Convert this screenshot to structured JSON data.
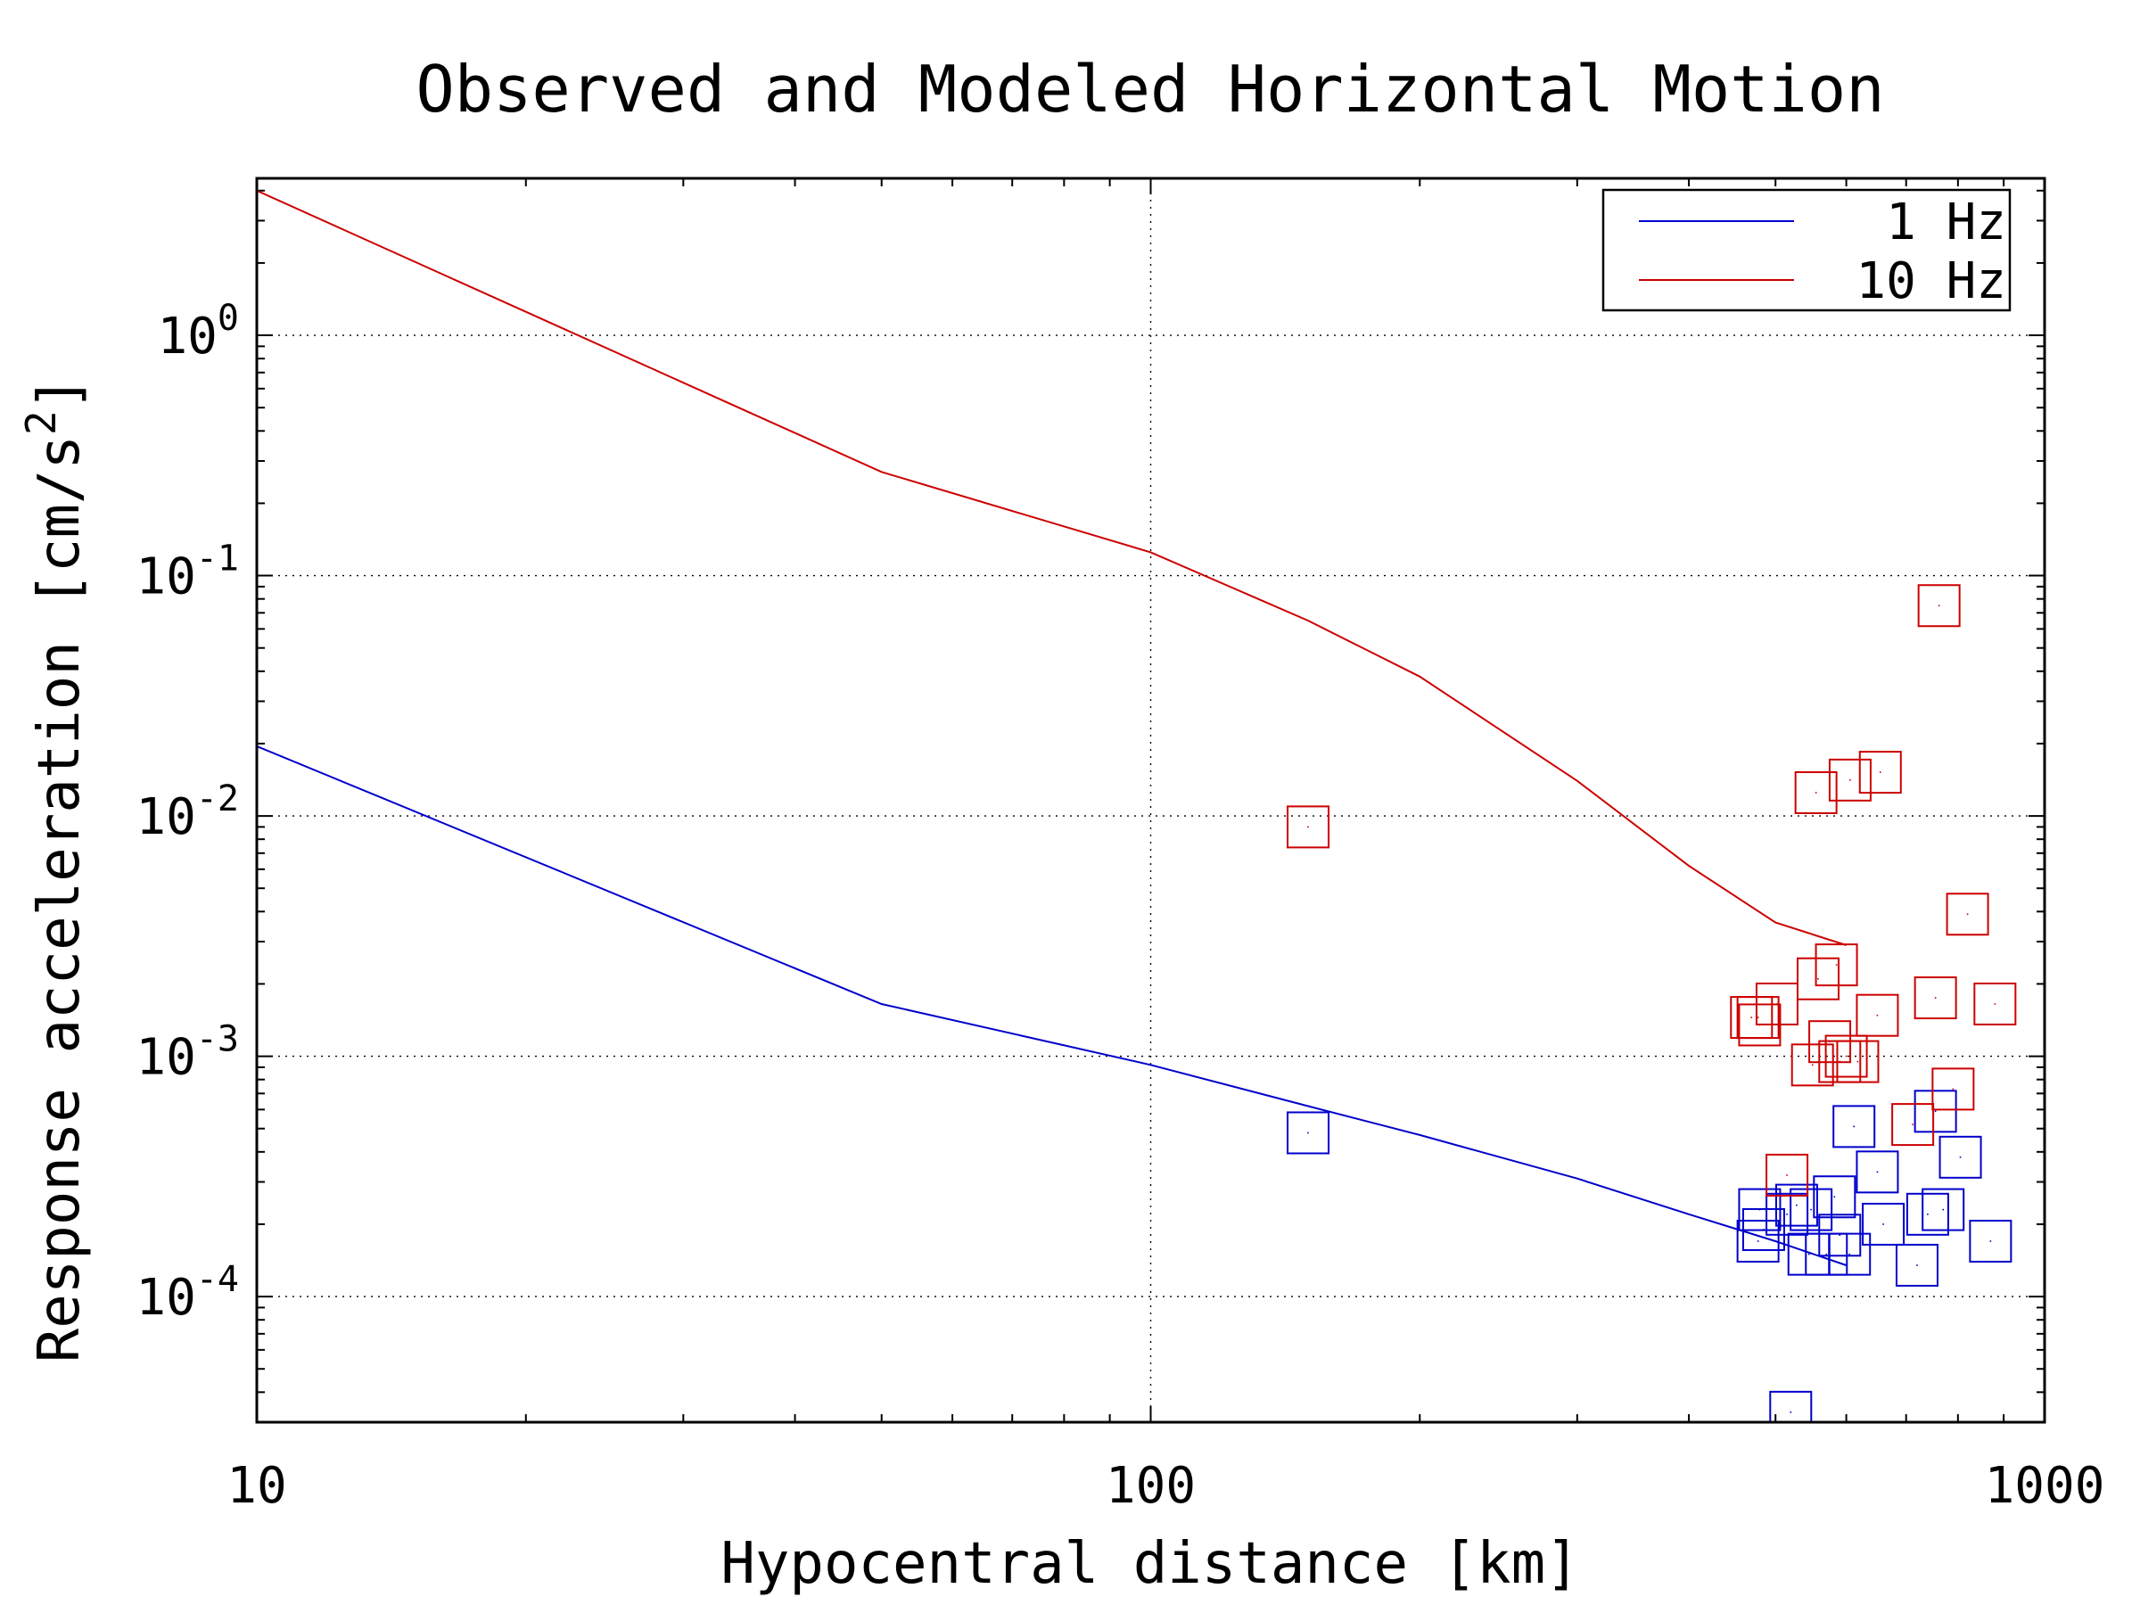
{
  "chart_data": {
    "type": "scatter",
    "title": "Observed and Modeled Horizontal Motion",
    "xlabel": "Hypocentral distance [km]",
    "ylabel": "Response acceleration [cm/s",
    "ylabel_superscript": "2",
    "ylabel_suffix": "]",
    "xscale": "log",
    "yscale": "log",
    "xlim": [
      10,
      1000
    ],
    "ylim": [
      3e-05,
      4.5
    ],
    "x_ticks": [
      {
        "value": 10,
        "label": "10"
      },
      {
        "value": 100,
        "label": "100"
      },
      {
        "value": 1000,
        "label": "1000"
      }
    ],
    "y_ticks": [
      {
        "value": 0.0001,
        "base": "10",
        "exponent": "-4"
      },
      {
        "value": 0.001,
        "base": "10",
        "exponent": "-3"
      },
      {
        "value": 0.01,
        "base": "10",
        "exponent": "-2"
      },
      {
        "value": 0.1,
        "base": "10",
        "exponent": "-1"
      },
      {
        "value": 1,
        "base": "10",
        "exponent": "0"
      }
    ],
    "grid": true,
    "legend_position": "top-right",
    "series": [
      {
        "name": "1 Hz",
        "color": "#0000cc",
        "kind": "model-line",
        "x": [
          10,
          50,
          100,
          150,
          200,
          300,
          400,
          500,
          600
        ],
        "y": [
          0.0195,
          0.00165,
          0.00092,
          0.00062,
          0.00047,
          0.00031,
          0.00022,
          0.00017,
          0.000135
        ]
      },
      {
        "name": "10 Hz",
        "color": "#cc0000",
        "kind": "model-line",
        "x": [
          10,
          50,
          100,
          150,
          200,
          300,
          400,
          500,
          600
        ],
        "y": [
          4.0,
          0.27,
          0.125,
          0.065,
          0.038,
          0.014,
          0.0062,
          0.0036,
          0.0029
        ]
      },
      {
        "name": "",
        "color": "#0000cc",
        "kind": "observed-markers",
        "points": [
          [
            150,
            0.00048
          ],
          [
            480,
            0.00023
          ],
          [
            485,
            0.00019
          ],
          [
            478,
            0.00017
          ],
          [
            515,
            0.00022
          ],
          [
            520,
            3.3e-05
          ],
          [
            528,
            0.00024
          ],
          [
            545,
            0.00015
          ],
          [
            548,
            0.00023
          ],
          [
            570,
            0.00015
          ],
          [
            582,
            0.00026
          ],
          [
            590,
            0.00018
          ],
          [
            605,
            0.00015
          ],
          [
            612,
            0.00051
          ],
          [
            650,
            0.00033
          ],
          [
            660,
            0.0002
          ],
          [
            720,
            0.000135
          ],
          [
            740,
            0.00022
          ],
          [
            755,
            0.00059
          ],
          [
            770,
            0.00023
          ],
          [
            805,
            0.00038
          ],
          [
            870,
            0.00017
          ]
        ]
      },
      {
        "name": "",
        "color": "#cc0000",
        "kind": "observed-markers",
        "points": [
          [
            150,
            0.009
          ],
          [
            470,
            0.00145
          ],
          [
            478,
            0.00145
          ],
          [
            480,
            0.00135
          ],
          [
            502,
            0.00165
          ],
          [
            515,
            0.00032
          ],
          [
            550,
            0.00092
          ],
          [
            555,
            0.0125
          ],
          [
            558,
            0.0021
          ],
          [
            575,
            0.00115
          ],
          [
            585,
            0.0024
          ],
          [
            590,
            0.00095
          ],
          [
            600,
            0.001
          ],
          [
            606,
            0.0141
          ],
          [
            618,
            0.00095
          ],
          [
            650,
            0.00148
          ],
          [
            655,
            0.0152
          ],
          [
            712,
            0.00052
          ],
          [
            755,
            0.00175
          ],
          [
            762,
            0.075
          ],
          [
            790,
            0.00073
          ],
          [
            820,
            0.0039
          ],
          [
            880,
            0.00165
          ]
        ]
      }
    ]
  }
}
